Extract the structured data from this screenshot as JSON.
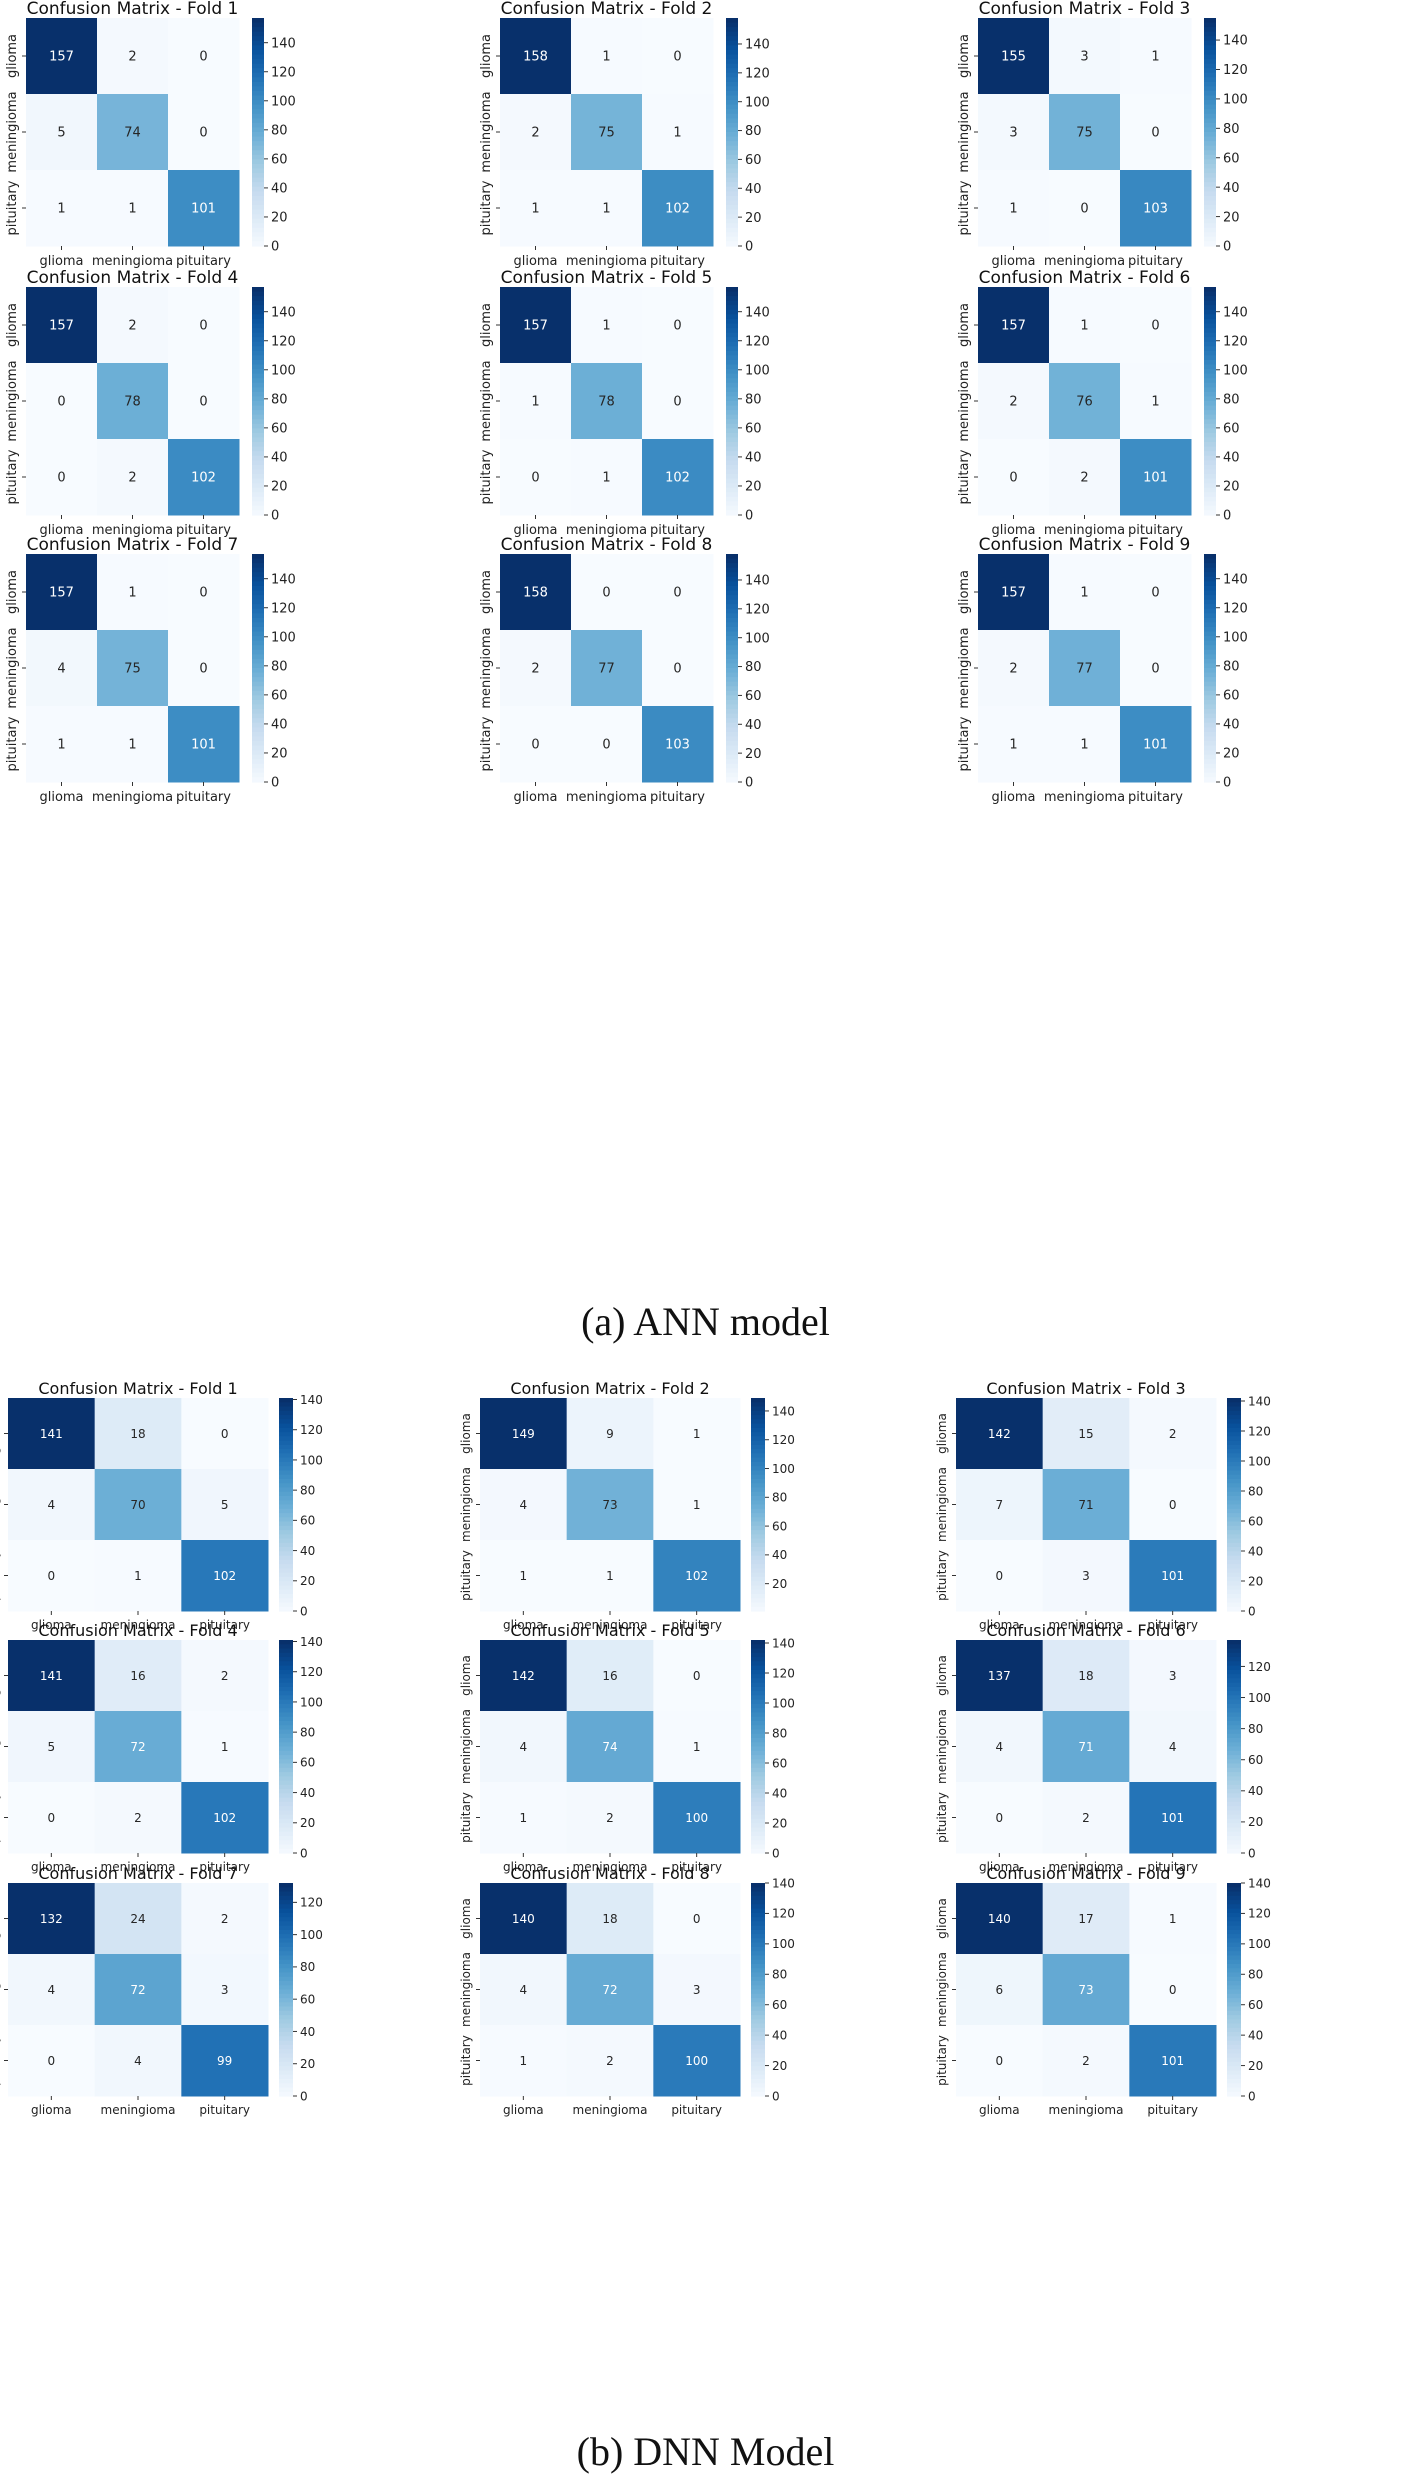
{
  "sections": [
    {
      "caption": "(a)  ANN model",
      "classes": [
        "glioma",
        "meningioma",
        "pituitary"
      ],
      "colorbar": {
        "vmin": 0,
        "vmax": 158,
        "ticks": [
          0,
          20,
          40,
          60,
          80,
          100,
          120,
          140
        ]
      }
    },
    {
      "caption": "(b)  DNN Model",
      "classes": [
        "glioma",
        "meningioma",
        "pituitary"
      ],
      "colorbar": {
        "vmin": 0,
        "vmax": 142,
        "ticks": [
          0,
          20,
          40,
          60,
          80,
          100,
          120,
          140
        ]
      }
    }
  ],
  "chart_data": [
    {
      "type": "heatmap",
      "group": "ANN model",
      "title": "Confusion Matrix - Fold 1",
      "matrix": [
        [
          157,
          2,
          0
        ],
        [
          5,
          74,
          0
        ],
        [
          1,
          1,
          101
        ]
      ],
      "colorbar": {
        "vmin": 0,
        "vmax": 157,
        "ticks": [
          0,
          20,
          40,
          60,
          80,
          100,
          120,
          140
        ]
      }
    },
    {
      "type": "heatmap",
      "group": "ANN model",
      "title": "Confusion Matrix - Fold 2",
      "matrix": [
        [
          158,
          1,
          0
        ],
        [
          2,
          75,
          1
        ],
        [
          1,
          1,
          102
        ]
      ],
      "colorbar": {
        "vmin": 0,
        "vmax": 158,
        "ticks": [
          0,
          20,
          40,
          60,
          80,
          100,
          120,
          140
        ]
      }
    },
    {
      "type": "heatmap",
      "group": "ANN model",
      "title": "Confusion Matrix - Fold 3",
      "matrix": [
        [
          155,
          3,
          1
        ],
        [
          3,
          75,
          0
        ],
        [
          1,
          0,
          103
        ]
      ],
      "colorbar": {
        "vmin": 0,
        "vmax": 155,
        "ticks": [
          0,
          20,
          40,
          60,
          80,
          100,
          120,
          140
        ]
      }
    },
    {
      "type": "heatmap",
      "group": "ANN model",
      "title": "Confusion Matrix - Fold 4",
      "matrix": [
        [
          157,
          2,
          0
        ],
        [
          0,
          78,
          0
        ],
        [
          0,
          2,
          102
        ]
      ],
      "colorbar": {
        "vmin": 0,
        "vmax": 157,
        "ticks": [
          0,
          20,
          40,
          60,
          80,
          100,
          120,
          140
        ]
      }
    },
    {
      "type": "heatmap",
      "group": "ANN model",
      "title": "Confusion Matrix - Fold 5",
      "matrix": [
        [
          157,
          1,
          0
        ],
        [
          1,
          78,
          0
        ],
        [
          0,
          1,
          102
        ]
      ],
      "colorbar": {
        "vmin": 0,
        "vmax": 157,
        "ticks": [
          0,
          20,
          40,
          60,
          80,
          100,
          120,
          140
        ]
      }
    },
    {
      "type": "heatmap",
      "group": "ANN model",
      "title": "Confusion Matrix - Fold 6",
      "matrix": [
        [
          157,
          1,
          0
        ],
        [
          2,
          76,
          1
        ],
        [
          0,
          2,
          101
        ]
      ],
      "colorbar": {
        "vmin": 0,
        "vmax": 157,
        "ticks": [
          0,
          20,
          40,
          60,
          80,
          100,
          120,
          140
        ]
      }
    },
    {
      "type": "heatmap",
      "group": "ANN model",
      "title": "Confusion Matrix - Fold 7",
      "matrix": [
        [
          157,
          1,
          0
        ],
        [
          4,
          75,
          0
        ],
        [
          1,
          1,
          101
        ]
      ],
      "colorbar": {
        "vmin": 0,
        "vmax": 157,
        "ticks": [
          0,
          20,
          40,
          60,
          80,
          100,
          120,
          140
        ]
      }
    },
    {
      "type": "heatmap",
      "group": "ANN model",
      "title": "Confusion Matrix - Fold 8",
      "matrix": [
        [
          158,
          0,
          0
        ],
        [
          2,
          77,
          0
        ],
        [
          0,
          0,
          103
        ]
      ],
      "colorbar": {
        "vmin": 0,
        "vmax": 158,
        "ticks": [
          0,
          20,
          40,
          60,
          80,
          100,
          120,
          140
        ]
      }
    },
    {
      "type": "heatmap",
      "group": "ANN model",
      "title": "Confusion Matrix - Fold 9",
      "matrix": [
        [
          157,
          1,
          0
        ],
        [
          2,
          77,
          0
        ],
        [
          1,
          1,
          101
        ]
      ],
      "colorbar": {
        "vmin": 0,
        "vmax": 157,
        "ticks": [
          0,
          20,
          40,
          60,
          80,
          100,
          120,
          140
        ]
      }
    },
    {
      "type": "heatmap",
      "group": "DNN Model",
      "title": "Confusion Matrix - Fold 1",
      "matrix": [
        [
          141,
          18,
          0
        ],
        [
          4,
          70,
          5
        ],
        [
          0,
          1,
          102
        ]
      ],
      "colorbar": {
        "vmin": 0,
        "vmax": 141,
        "ticks": [
          0,
          20,
          40,
          60,
          80,
          100,
          120,
          140
        ]
      }
    },
    {
      "type": "heatmap",
      "group": "DNN Model",
      "title": "Confusion Matrix - Fold 2",
      "matrix": [
        [
          149,
          9,
          1
        ],
        [
          4,
          73,
          1
        ],
        [
          1,
          1,
          102
        ]
      ],
      "colorbar": {
        "vmin": 1,
        "vmax": 149,
        "ticks": [
          20,
          40,
          60,
          80,
          100,
          120,
          140
        ]
      }
    },
    {
      "type": "heatmap",
      "group": "DNN Model",
      "title": "Confusion Matrix - Fold 3",
      "matrix": [
        [
          142,
          15,
          2
        ],
        [
          7,
          71,
          0
        ],
        [
          0,
          3,
          101
        ]
      ],
      "colorbar": {
        "vmin": 0,
        "vmax": 142,
        "ticks": [
          0,
          20,
          40,
          60,
          80,
          100,
          120,
          140
        ]
      }
    },
    {
      "type": "heatmap",
      "group": "DNN Model",
      "title": "Confusion Matrix - Fold 4",
      "matrix": [
        [
          141,
          16,
          2
        ],
        [
          5,
          72,
          1
        ],
        [
          0,
          2,
          102
        ]
      ],
      "colorbar": {
        "vmin": 0,
        "vmax": 141,
        "ticks": [
          0,
          20,
          40,
          60,
          80,
          100,
          120,
          140
        ]
      }
    },
    {
      "type": "heatmap",
      "group": "DNN Model",
      "title": "Confusion Matrix - Fold 5",
      "matrix": [
        [
          142,
          16,
          0
        ],
        [
          4,
          74,
          1
        ],
        [
          1,
          2,
          100
        ]
      ],
      "colorbar": {
        "vmin": 0,
        "vmax": 142,
        "ticks": [
          0,
          20,
          40,
          60,
          80,
          100,
          120,
          140
        ]
      }
    },
    {
      "type": "heatmap",
      "group": "DNN Model",
      "title": "Confusion Matrix - Fold 6",
      "matrix": [
        [
          137,
          18,
          3
        ],
        [
          4,
          71,
          4
        ],
        [
          0,
          2,
          101
        ]
      ],
      "colorbar": {
        "vmin": 0,
        "vmax": 137,
        "ticks": [
          0,
          20,
          40,
          60,
          80,
          100,
          120
        ]
      }
    },
    {
      "type": "heatmap",
      "group": "DNN Model",
      "title": "Confusion Matrix - Fold 7",
      "matrix": [
        [
          132,
          24,
          2
        ],
        [
          4,
          72,
          3
        ],
        [
          0,
          4,
          99
        ]
      ],
      "colorbar": {
        "vmin": 0,
        "vmax": 132,
        "ticks": [
          0,
          20,
          40,
          60,
          80,
          100,
          120
        ]
      }
    },
    {
      "type": "heatmap",
      "group": "DNN Model",
      "title": "Confusion Matrix - Fold 8",
      "matrix": [
        [
          140,
          18,
          0
        ],
        [
          4,
          72,
          3
        ],
        [
          1,
          2,
          100
        ]
      ],
      "colorbar": {
        "vmin": 0,
        "vmax": 140,
        "ticks": [
          0,
          20,
          40,
          60,
          80,
          100,
          120,
          140
        ]
      }
    },
    {
      "type": "heatmap",
      "group": "DNN Model",
      "title": "Confusion Matrix - Fold 9",
      "matrix": [
        [
          140,
          17,
          1
        ],
        [
          6,
          73,
          0
        ],
        [
          0,
          2,
          101
        ]
      ],
      "colorbar": {
        "vmin": 0,
        "vmax": 140,
        "ticks": [
          0,
          20,
          40,
          60,
          80,
          100,
          120,
          140
        ]
      }
    }
  ]
}
